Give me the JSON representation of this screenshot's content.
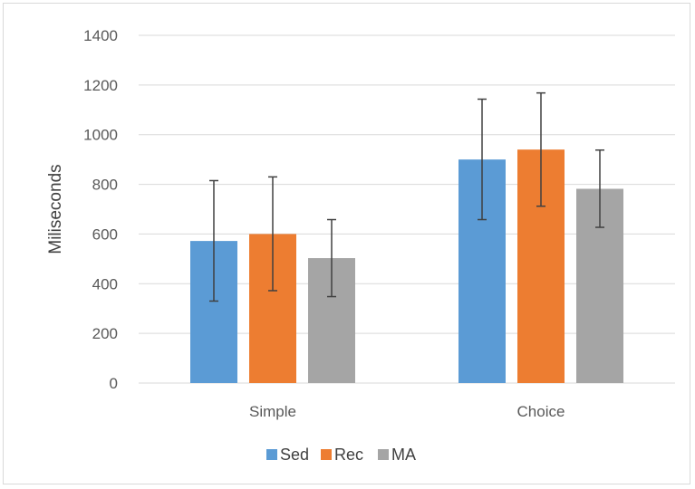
{
  "chart_data": {
    "type": "bar",
    "title": "",
    "xlabel": "",
    "ylabel": "Miliseconds",
    "ylim": [
      0,
      1400
    ],
    "yticks": [
      0,
      200,
      400,
      600,
      800,
      1000,
      1200,
      1400
    ],
    "grid": true,
    "legend_position": "bottom",
    "categories": [
      "Simple",
      "Choice"
    ],
    "series": [
      {
        "name": "Sed",
        "color": "#5b9bd5",
        "values": [
          572,
          900
        ],
        "error_low": [
          330,
          658
        ],
        "error_high": [
          815,
          1143
        ]
      },
      {
        "name": "Rec",
        "color": "#ed7d31",
        "values": [
          600,
          940
        ],
        "error_low": [
          372,
          712
        ],
        "error_high": [
          830,
          1168
        ]
      },
      {
        "name": "MA",
        "color": "#a5a5a5",
        "values": [
          503,
          782
        ],
        "error_low": [
          348,
          627
        ],
        "error_high": [
          658,
          938
        ]
      }
    ]
  },
  "colors": {
    "gridline": "#d9d9d9",
    "error_bar": "#404040",
    "axis_text": "#595959"
  }
}
